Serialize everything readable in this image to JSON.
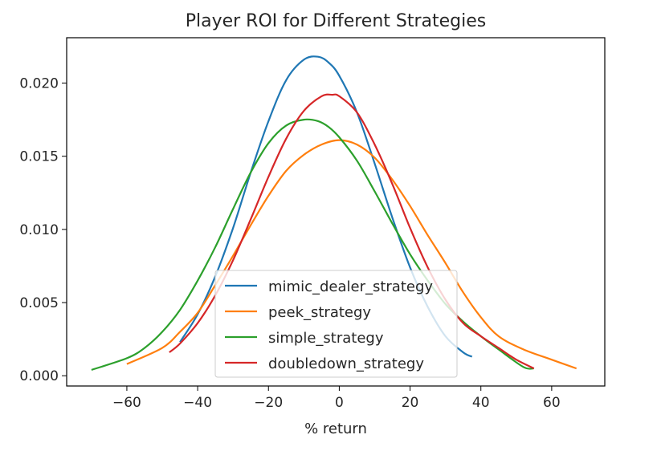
{
  "chart_data": {
    "type": "line",
    "title": "Player ROI for Different Strategies",
    "xlabel": "% return",
    "ylabel": "",
    "xlim": [
      -77,
      75
    ],
    "ylim": [
      -0.0007,
      0.0231
    ],
    "x_ticks": [
      -60,
      -40,
      -20,
      0,
      20,
      40,
      60
    ],
    "x_tick_labels": [
      "−60",
      "−40",
      "−20",
      "0",
      "20",
      "40",
      "60"
    ],
    "y_ticks": [
      0.0,
      0.005,
      0.01,
      0.015,
      0.02
    ],
    "y_tick_labels": [
      "0.000",
      "0.005",
      "0.010",
      "0.015",
      "0.020"
    ],
    "grid": false,
    "legend_position": "lower center",
    "series": [
      {
        "name": "mimic_dealer_strategy",
        "color": "#1f77b4",
        "points": [
          [
            -45,
            0.0023
          ],
          [
            -40,
            0.0042
          ],
          [
            -35,
            0.0068
          ],
          [
            -30,
            0.0101
          ],
          [
            -25,
            0.0139
          ],
          [
            -20,
            0.0174
          ],
          [
            -15,
            0.0202
          ],
          [
            -10,
            0.0216
          ],
          [
            -6,
            0.0218
          ],
          [
            -3,
            0.0214
          ],
          [
            0,
            0.0205
          ],
          [
            5,
            0.018
          ],
          [
            10,
            0.0145
          ],
          [
            15,
            0.0108
          ],
          [
            20,
            0.0074
          ],
          [
            25,
            0.0047
          ],
          [
            30,
            0.0027
          ],
          [
            35,
            0.0016
          ],
          [
            37.5,
            0.0013
          ]
        ]
      },
      {
        "name": "peek_strategy",
        "color": "#ff7f0e",
        "points": [
          [
            -60,
            0.0008
          ],
          [
            -50,
            0.0019
          ],
          [
            -45,
            0.003
          ],
          [
            -40,
            0.0043
          ],
          [
            -35,
            0.0062
          ],
          [
            -30,
            0.0082
          ],
          [
            -25,
            0.0103
          ],
          [
            -20,
            0.0123
          ],
          [
            -15,
            0.014
          ],
          [
            -10,
            0.0151
          ],
          [
            -5,
            0.0158
          ],
          [
            0,
            0.0161
          ],
          [
            5,
            0.0158
          ],
          [
            10,
            0.0149
          ],
          [
            15,
            0.0134
          ],
          [
            20,
            0.0116
          ],
          [
            25,
            0.0096
          ],
          [
            30,
            0.0077
          ],
          [
            35,
            0.0057
          ],
          [
            40,
            0.004
          ],
          [
            45,
            0.0027
          ],
          [
            52,
            0.0018
          ],
          [
            60,
            0.0011
          ],
          [
            67,
            0.0005
          ]
        ]
      },
      {
        "name": "simple_strategy",
        "color": "#2ca02c",
        "points": [
          [
            -70,
            0.0004
          ],
          [
            -60,
            0.0012
          ],
          [
            -55,
            0.0019
          ],
          [
            -50,
            0.003
          ],
          [
            -45,
            0.0045
          ],
          [
            -40,
            0.0065
          ],
          [
            -35,
            0.0088
          ],
          [
            -30,
            0.0114
          ],
          [
            -25,
            0.0139
          ],
          [
            -20,
            0.0159
          ],
          [
            -15,
            0.0171
          ],
          [
            -10,
            0.0175
          ],
          [
            -6,
            0.0174
          ],
          [
            -3,
            0.017
          ],
          [
            0,
            0.0163
          ],
          [
            5,
            0.0147
          ],
          [
            10,
            0.0126
          ],
          [
            15,
            0.0104
          ],
          [
            20,
            0.0083
          ],
          [
            25,
            0.0065
          ],
          [
            30,
            0.0049
          ],
          [
            35,
            0.0037
          ],
          [
            40,
            0.0027
          ],
          [
            45,
            0.0018
          ],
          [
            52,
            0.0006
          ],
          [
            55,
            0.0005
          ]
        ]
      },
      {
        "name": "doubledown_strategy",
        "color": "#d62728",
        "points": [
          [
            -48,
            0.0016
          ],
          [
            -45,
            0.0022
          ],
          [
            -40,
            0.0036
          ],
          [
            -35,
            0.0055
          ],
          [
            -30,
            0.0079
          ],
          [
            -25,
            0.0107
          ],
          [
            -20,
            0.0136
          ],
          [
            -15,
            0.0162
          ],
          [
            -10,
            0.0181
          ],
          [
            -5,
            0.0191
          ],
          [
            -2,
            0.0192
          ],
          [
            0,
            0.0191
          ],
          [
            5,
            0.018
          ],
          [
            10,
            0.0158
          ],
          [
            15,
            0.0131
          ],
          [
            20,
            0.0101
          ],
          [
            25,
            0.0074
          ],
          [
            30,
            0.0052
          ],
          [
            35,
            0.0036
          ],
          [
            40,
            0.0027
          ],
          [
            45,
            0.0019
          ],
          [
            50,
            0.0011
          ],
          [
            55,
            0.0005
          ]
        ]
      }
    ]
  }
}
